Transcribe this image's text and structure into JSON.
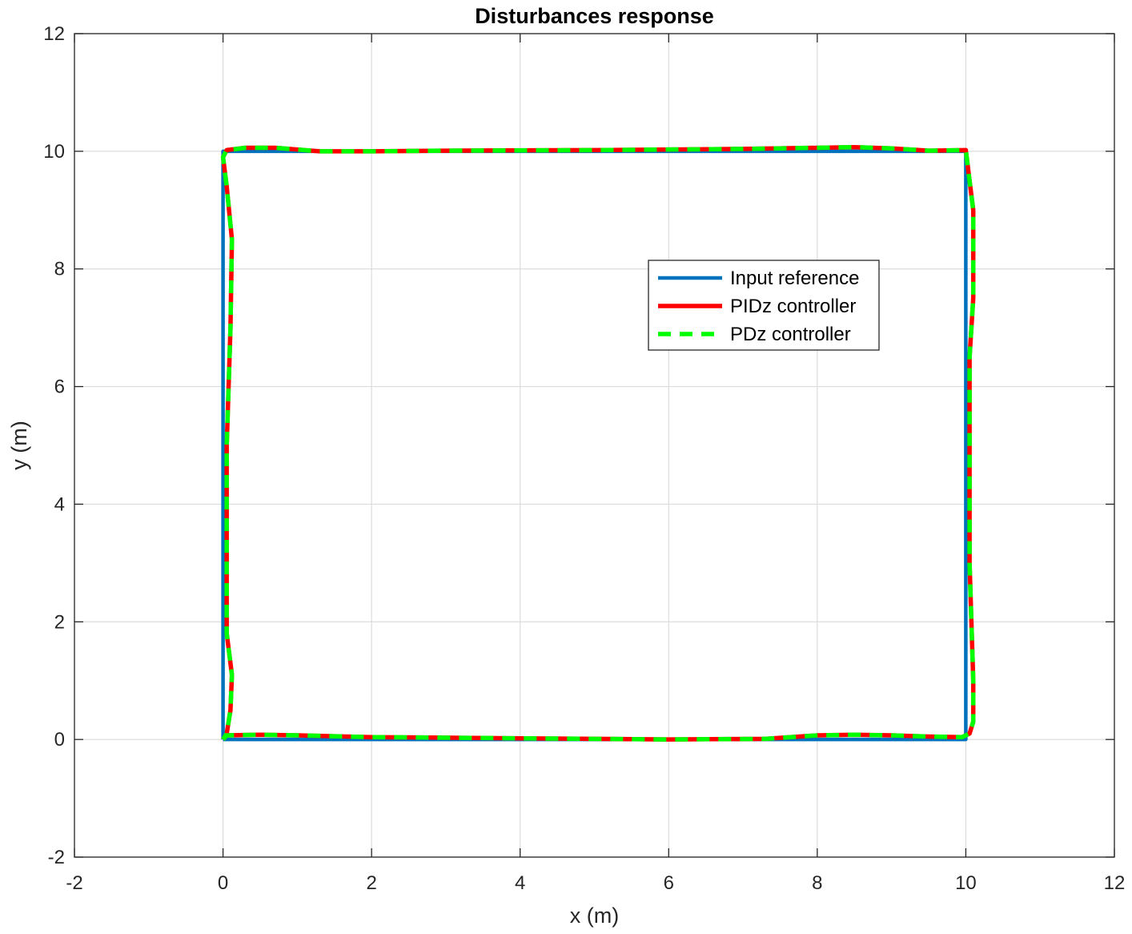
{
  "chart_data": {
    "type": "line",
    "title": "Disturbances response",
    "xlabel": "x (m)",
    "ylabel": "y (m)",
    "xlim": [
      -2,
      12
    ],
    "ylim": [
      -2,
      12
    ],
    "xticks": [
      "-2",
      "0",
      "2",
      "4",
      "6",
      "8",
      "10",
      "12"
    ],
    "yticks": [
      "-2",
      "0",
      "2",
      "4",
      "6",
      "8",
      "10",
      "12"
    ],
    "grid": true,
    "legend_position": "upper-right-inside",
    "series": [
      {
        "name": "Input reference",
        "color": "#0072BD",
        "style": "solid",
        "x": [
          0,
          10,
          10,
          0,
          0
        ],
        "y": [
          0,
          0,
          10,
          10,
          0
        ]
      },
      {
        "name": "PIDz controller",
        "color": "#FF0000",
        "style": "solid",
        "x": [
          0,
          0.05,
          0.5,
          1.0,
          2.0,
          4.0,
          6.0,
          7.3,
          8.0,
          8.5,
          9.0,
          9.5,
          9.95,
          10.05,
          10.1,
          10.1,
          10.05,
          10.05,
          10.1,
          10.1,
          10.05,
          10.0,
          9.5,
          9.0,
          8.5,
          8.0,
          7.0,
          5.0,
          3.0,
          2.0,
          1.3,
          0.7,
          0.3,
          0.05,
          0.0,
          0.05,
          0.12,
          0.1,
          0.05,
          0.05,
          0.05,
          0.12,
          0.1,
          0.05,
          0.0
        ],
        "y": [
          0,
          0.07,
          0.08,
          0.07,
          0.04,
          0.02,
          0.0,
          0.01,
          0.07,
          0.08,
          0.07,
          0.05,
          0.04,
          0.1,
          0.3,
          1.0,
          3.0,
          6.5,
          7.5,
          9.0,
          9.5,
          10.02,
          10.01,
          10.05,
          10.07,
          10.06,
          10.04,
          10.02,
          10.01,
          10.0,
          10.0,
          10.06,
          10.06,
          10.02,
          9.9,
          9.4,
          8.5,
          7.0,
          5.0,
          3.0,
          1.8,
          1.1,
          0.5,
          0.1,
          0.0
        ]
      },
      {
        "name": "PDz controller",
        "color": "#00FF00",
        "style": "dashed",
        "x": [
          0,
          0.05,
          0.5,
          1.0,
          2.0,
          4.0,
          6.0,
          7.3,
          8.0,
          8.5,
          9.0,
          9.5,
          9.95,
          10.05,
          10.1,
          10.1,
          10.05,
          10.05,
          10.1,
          10.1,
          10.05,
          10.0,
          9.5,
          9.0,
          8.5,
          8.0,
          7.0,
          5.0,
          3.0,
          2.0,
          1.3,
          0.7,
          0.3,
          0.05,
          0.0,
          0.05,
          0.12,
          0.1,
          0.05,
          0.05,
          0.05,
          0.12,
          0.1,
          0.05,
          0.0
        ],
        "y": [
          0,
          0.07,
          0.08,
          0.07,
          0.04,
          0.02,
          0.0,
          0.01,
          0.07,
          0.08,
          0.07,
          0.05,
          0.04,
          0.1,
          0.3,
          1.0,
          3.0,
          6.5,
          7.5,
          9.0,
          9.5,
          10.02,
          10.01,
          10.05,
          10.07,
          10.06,
          10.04,
          10.02,
          10.01,
          10.0,
          10.0,
          10.06,
          10.06,
          10.02,
          9.9,
          9.4,
          8.5,
          7.0,
          5.0,
          3.0,
          1.8,
          1.1,
          0.5,
          0.1,
          0.0
        ]
      }
    ]
  }
}
